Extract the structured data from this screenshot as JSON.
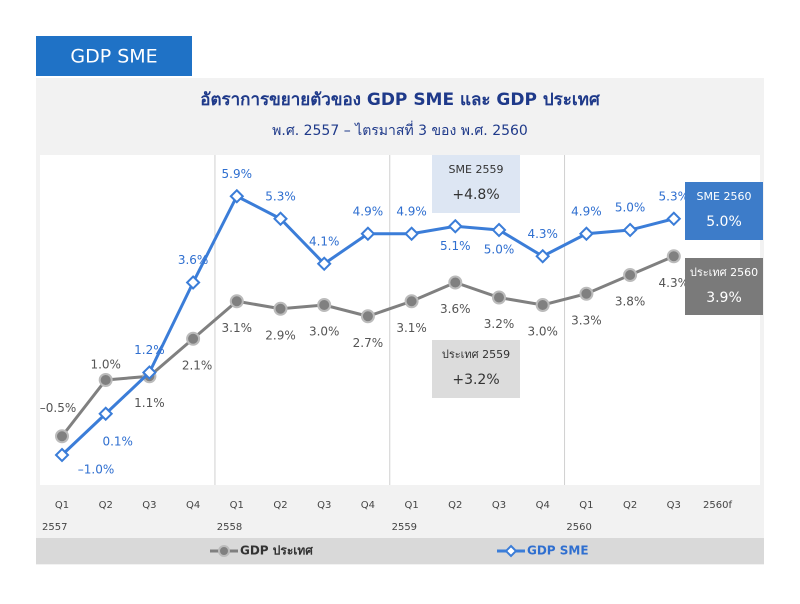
{
  "header": "GDP SME",
  "chart_data": {
    "type": "line",
    "title": "อัตราการขยายตัวของ GDP SME และ GDP ประเทศ",
    "subtitle": "พ.ศ. 2557 – ไตรมาสที่ 3 ของ พ.ศ. 2560",
    "categories": [
      "Q1",
      "Q2",
      "Q3",
      "Q4",
      "Q1",
      "Q2",
      "Q3",
      "Q4",
      "Q1",
      "Q2",
      "Q3",
      "Q4",
      "Q1",
      "Q2",
      "Q3",
      "2560f"
    ],
    "years": [
      "2557",
      "2558",
      "2559",
      "2560"
    ],
    "ylim": [
      -1.8,
      7.0
    ],
    "series": [
      {
        "name": "GDP ประเทศ",
        "color": "#808080",
        "values": [
          -0.5,
          1.0,
          1.1,
          2.1,
          3.1,
          2.9,
          3.0,
          2.7,
          3.1,
          3.6,
          3.2,
          3.0,
          3.3,
          3.8,
          4.3,
          null
        ],
        "value_labels": [
          "–0.5%",
          "1.0%",
          "1.1%",
          "2.1%",
          "3.1%",
          "2.9%",
          "3.0%",
          "2.7%",
          "3.1%",
          "3.6%",
          "3.2%",
          "3.0%",
          "3.3%",
          "3.8%",
          "4.3%",
          null
        ]
      },
      {
        "name": "GDP SME",
        "color": "#3b7dd8",
        "values": [
          -1.0,
          0.1,
          1.2,
          3.6,
          5.9,
          5.3,
          4.1,
          4.9,
          4.9,
          5.1,
          5.0,
          4.3,
          4.9,
          5.0,
          5.3,
          null
        ],
        "value_labels": [
          "–1.0%",
          "0.1%",
          "1.2%",
          "3.6%",
          "5.9%",
          "5.3%",
          "4.1%",
          "4.9%",
          "4.9%",
          "5.1%",
          "5.0%",
          "4.3%",
          "4.9%",
          "5.0%",
          "5.3%",
          null
        ]
      }
    ],
    "annotations": [
      {
        "title": "SME 2559",
        "text": "+4.8%"
      },
      {
        "title": "ประเทศ 2559",
        "text": "+3.2%"
      },
      {
        "title": "SME 2560",
        "text": "5.0%"
      },
      {
        "title": "ประเทศ 2560",
        "text": "3.9%"
      }
    ]
  }
}
